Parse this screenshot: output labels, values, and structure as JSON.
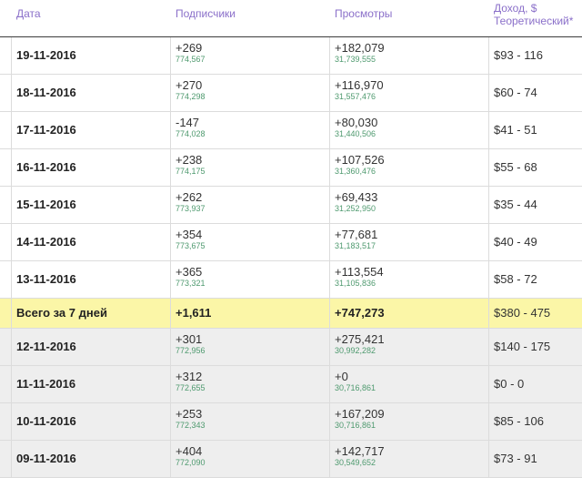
{
  "headers": {
    "date": "Дата",
    "subscribers": "Подписчики",
    "views": "Просмотры",
    "income": "Доход, $\nТеоретический*"
  },
  "rows_week": [
    {
      "date": "19-11-2016",
      "subs_delta": "+269",
      "subs_total": "774,567",
      "views_delta": "+182,079",
      "views_total": "31,739,555",
      "income": "$93 - 116"
    },
    {
      "date": "18-11-2016",
      "subs_delta": "+270",
      "subs_total": "774,298",
      "views_delta": "+116,970",
      "views_total": "31,557,476",
      "income": "$60 - 74"
    },
    {
      "date": "17-11-2016",
      "subs_delta": "-147",
      "subs_total": "774,028",
      "views_delta": "+80,030",
      "views_total": "31,440,506",
      "income": "$41 - 51"
    },
    {
      "date": "16-11-2016",
      "subs_delta": "+238",
      "subs_total": "774,175",
      "views_delta": "+107,526",
      "views_total": "31,360,476",
      "income": "$55 - 68"
    },
    {
      "date": "15-11-2016",
      "subs_delta": "+262",
      "subs_total": "773,937",
      "views_delta": "+69,433",
      "views_total": "31,252,950",
      "income": "$35 - 44"
    },
    {
      "date": "14-11-2016",
      "subs_delta": "+354",
      "subs_total": "773,675",
      "views_delta": "+77,681",
      "views_total": "31,183,517",
      "income": "$40 - 49"
    },
    {
      "date": "13-11-2016",
      "subs_delta": "+365",
      "subs_total": "773,321",
      "views_delta": "+113,554",
      "views_total": "31,105,836",
      "income": "$58 - 72"
    }
  ],
  "total": {
    "label": "Всего за 7 дней",
    "subs": "+1,611",
    "views": "+747,273",
    "income": "$380 - 475"
  },
  "rows_prev": [
    {
      "date": "12-11-2016",
      "subs_delta": "+301",
      "subs_total": "772,956",
      "views_delta": "+275,421",
      "views_total": "30,992,282",
      "income": "$140 - 175"
    },
    {
      "date": "11-11-2016",
      "subs_delta": "+312",
      "subs_total": "772,655",
      "views_delta": "+0",
      "views_total": "30,716,861",
      "income": "$0 - 0"
    },
    {
      "date": "10-11-2016",
      "subs_delta": "+253",
      "subs_total": "772,343",
      "views_delta": "+167,209",
      "views_total": "30,716,861",
      "income": "$85 - 106"
    },
    {
      "date": "09-11-2016",
      "subs_delta": "+404",
      "subs_total": "772,090",
      "views_delta": "+142,717",
      "views_total": "30,549,652",
      "income": "$73 - 91"
    }
  ]
}
